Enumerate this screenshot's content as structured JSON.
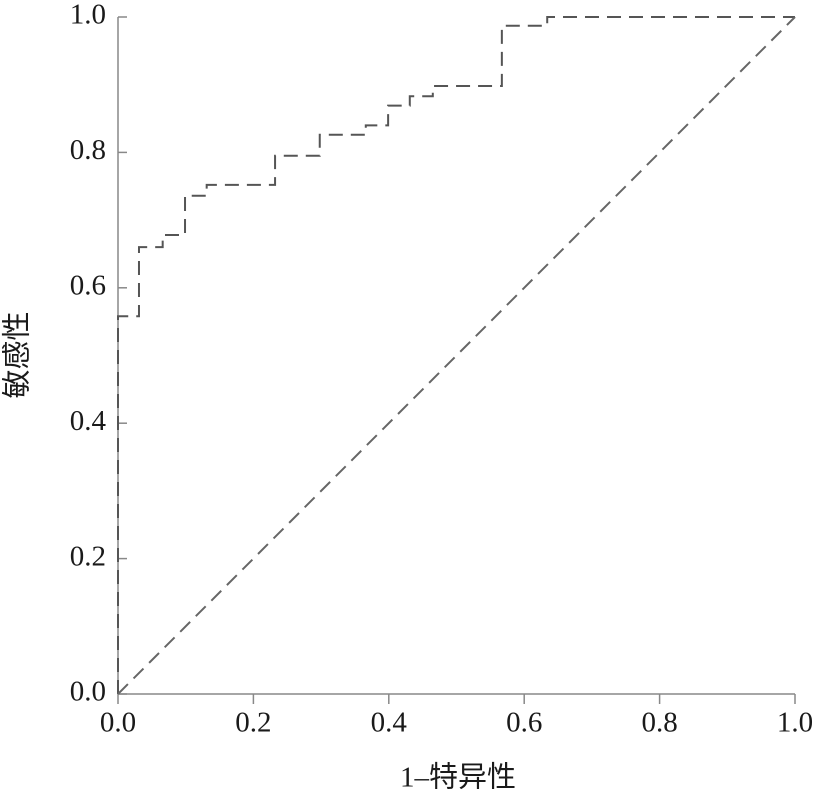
{
  "chart_data": {
    "type": "line",
    "xlabel": "1–特异性",
    "ylabel": "敏感性",
    "xlim": [
      0,
      1
    ],
    "ylim": [
      0,
      1
    ],
    "xticks": [
      {
        "value": 0,
        "label": "0.0"
      },
      0.2,
      0.4,
      0.6,
      0.8,
      {
        "value": 1,
        "label": "1.0"
      }
    ],
    "yticks": [
      {
        "value": 0,
        "label": "0.0"
      },
      0.2,
      0.4,
      0.6,
      0.8,
      {
        "value": 1,
        "label": "1.0"
      }
    ],
    "grid": false,
    "series": [
      {
        "color": "#555555",
        "x": [
          0,
          0,
          0.031,
          0.031,
          0.066,
          0.066,
          0.099,
          0.099,
          0.131,
          0.131,
          0.232,
          0.232,
          0.298,
          0.298,
          0.366,
          0.366,
          0.399,
          0.399,
          0.431,
          0.431,
          0.465,
          0.465,
          0.567,
          0.567,
          0.634,
          0.634,
          1
        ],
        "values": [
          0,
          0.558,
          0.558,
          0.66,
          0.66,
          0.678,
          0.678,
          0.736,
          0.736,
          0.752,
          0.752,
          0.795,
          0.795,
          0.826,
          0.826,
          0.84,
          0.84,
          0.869,
          0.869,
          0.883,
          0.883,
          0.898,
          0.898,
          0.987,
          0.987,
          1,
          1
        ]
      },
      {
        "color": "#666666",
        "x": [
          0,
          1
        ],
        "values": [
          0,
          1
        ]
      }
    ]
  }
}
